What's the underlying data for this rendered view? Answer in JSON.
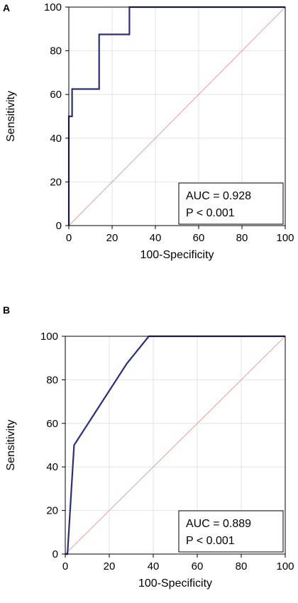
{
  "chart_data": [
    {
      "panel_label": "A",
      "type": "line",
      "xlabel": "100-Specificity",
      "ylabel": "Sensitivity",
      "xlim": [
        0,
        100
      ],
      "ylim": [
        0,
        100
      ],
      "xticks": [
        "0",
        "20",
        "40",
        "60",
        "80",
        "100"
      ],
      "yticks": [
        "0",
        "20",
        "40",
        "60",
        "80",
        "100"
      ],
      "grid": true,
      "roc_color": "#2b2f7a",
      "reference_color": "#e0a0a0",
      "series": [
        {
          "x": [
            0,
            0,
            0,
            0,
            1.5,
            1.5,
            1.5,
            14,
            14,
            28,
            28,
            100
          ],
          "y": [
            0,
            37.5,
            50,
            50,
            50,
            62.5,
            62.5,
            62.5,
            87.5,
            87.5,
            100,
            100
          ]
        }
      ],
      "reference_line": {
        "x": [
          0,
          100
        ],
        "y": [
          0,
          100
        ]
      },
      "annotations": [
        "AUC = 0.928",
        "P < 0.001"
      ],
      "annotation_placement": "bottom-right"
    },
    {
      "panel_label": "B",
      "type": "line",
      "xlabel": "100-Specificity",
      "ylabel": "Sensitivity",
      "xlim": [
        0,
        100
      ],
      "ylim": [
        0,
        100
      ],
      "xticks": [
        "0",
        "20",
        "40",
        "60",
        "80",
        "100"
      ],
      "yticks": [
        "0",
        "20",
        "40",
        "60",
        "80",
        "100"
      ],
      "grid": true,
      "roc_color": "#2b2f7a",
      "reference_color": "#e0a0a0",
      "series": [
        {
          "x": [
            0,
            1,
            4,
            28,
            38,
            100
          ],
          "y": [
            0,
            0,
            50,
            87.5,
            100,
            100
          ]
        }
      ],
      "reference_line": {
        "x": [
          0,
          100
        ],
        "y": [
          0,
          100
        ]
      },
      "annotations": [
        "AUC = 0.889",
        "P < 0.001"
      ],
      "annotation_placement": "bottom-right"
    }
  ]
}
